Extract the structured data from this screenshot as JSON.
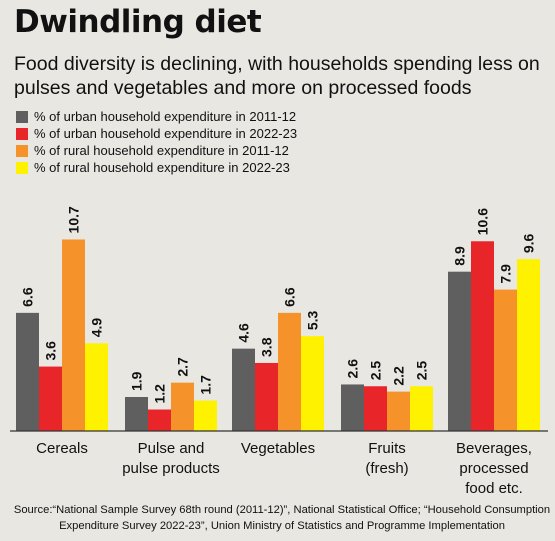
{
  "title": "Dwindling diet",
  "subtitle": "Food diversity is declining, with households spending less on pulses and vegetables and more on processed foods",
  "source": "Source:“National Sample Survey 68th round (2011-12)”, National Statistical Office; “Household Consumption Expenditure Survey 2022-23”, Union Ministry of Statistics and Programme Implementation",
  "chart_data": {
    "type": "bar",
    "categories": [
      "Cereals",
      "Pulse and pulse products",
      "Vegetables",
      "Fruits (fresh)",
      "Beverages, processed food etc."
    ],
    "category_lines": [
      [
        "Cereals"
      ],
      [
        "Pulse and",
        "pulse products"
      ],
      [
        "Vegetables"
      ],
      [
        "Fruits",
        "(fresh)"
      ],
      [
        "Beverages,",
        "processed",
        "food etc."
      ]
    ],
    "series": [
      {
        "name": "% of urban household expenditure in 2011-12",
        "color": "#5f5f5f",
        "values": [
          6.6,
          1.9,
          4.6,
          2.6,
          8.9
        ]
      },
      {
        "name": "% of urban household expenditure in 2022-23",
        "color": "#e8262a",
        "values": [
          3.6,
          1.2,
          3.8,
          2.5,
          10.6
        ]
      },
      {
        "name": "% of rural household expenditure in 2011-12",
        "color": "#f5922a",
        "values": [
          10.7,
          2.7,
          6.6,
          2.2,
          7.9
        ]
      },
      {
        "name": "% of rural household expenditure in 2022-23",
        "color": "#fff200",
        "values": [
          4.9,
          1.7,
          5.3,
          2.5,
          9.6
        ]
      }
    ],
    "ylim": [
      0,
      11
    ],
    "legend_position": "top-left",
    "grid": false,
    "xlabel": "",
    "ylabel": ""
  }
}
